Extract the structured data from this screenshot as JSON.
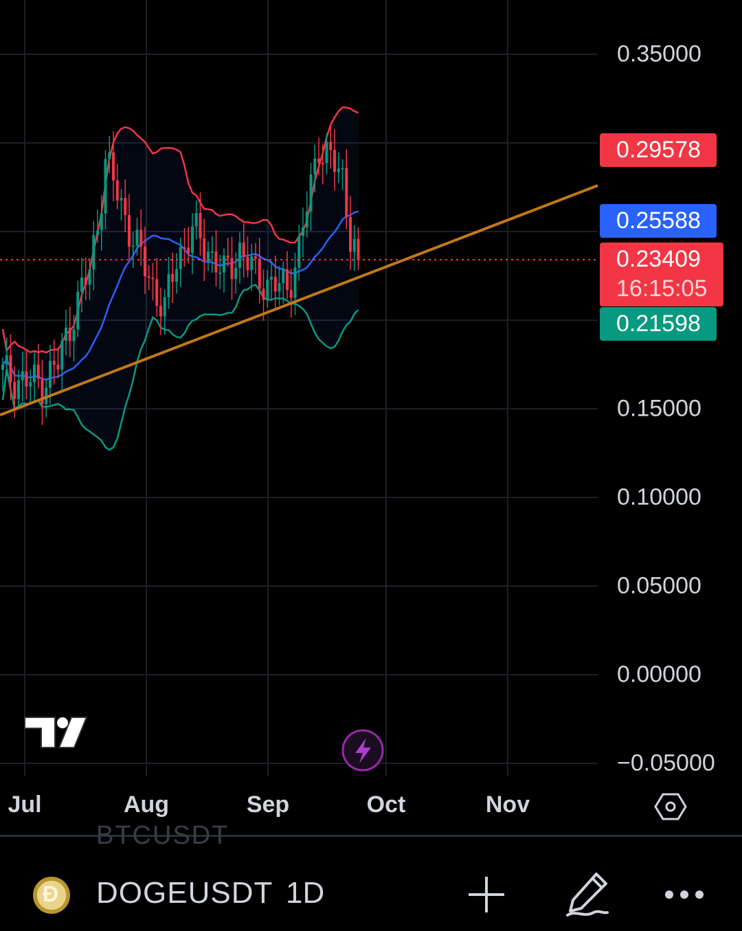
{
  "price_axis": {
    "labels": [
      "0.35000",
      "0.15000",
      "0.10000",
      "0.05000",
      "0.00000",
      "−0.05000"
    ]
  },
  "badges": {
    "upper": "0.29578",
    "middle": "0.25588",
    "last_price": "0.23409",
    "countdown": "16:15:05",
    "lower": "0.21598"
  },
  "time_axis": {
    "labels": [
      "Jul",
      "Aug",
      "Sep",
      "Oct",
      "Nov"
    ]
  },
  "toolbar": {
    "ghost_symbol": "BTCUSDT",
    "symbol": "DOGEUSDT",
    "interval": "1D"
  },
  "icons": {
    "logo": "tradingview-logo",
    "flash": "lightning-icon",
    "settings": "hexagon-settings-icon",
    "add": "plus-icon",
    "draw": "pencil-icon",
    "more": "more-dots-icon",
    "coin": "dogecoin-icon"
  },
  "colors": {
    "up": "#089981",
    "down": "#f23645",
    "upper_band": "#f23645",
    "basis": "#2962ff",
    "lower_band": "#089981",
    "trendline": "#c27916",
    "accent": "#9c27b0"
  },
  "chart_data": {
    "type": "candlestick",
    "symbol": "DOGEUSDT",
    "interval": "1D",
    "y_range": [
      -0.05,
      0.35
    ],
    "x_ticks": [
      "Jul",
      "Aug",
      "Sep",
      "Oct",
      "Nov"
    ],
    "last_price": 0.23409,
    "indicators": {
      "bollinger_upper": 0.29578,
      "bollinger_basis": 0.25588,
      "bollinger_lower": 0.21598
    },
    "approx_path": {
      "close_by_period": [
        {
          "period": "late Jun",
          "value": 0.165
        },
        {
          "period": "early Jul",
          "value": 0.17
        },
        {
          "period": "mid Jul",
          "value": 0.24
        },
        {
          "period": "late Jul",
          "value": 0.29
        },
        {
          "period": "early Aug",
          "value": 0.22
        },
        {
          "period": "mid Aug",
          "value": 0.245
        },
        {
          "period": "late Aug",
          "value": 0.225
        },
        {
          "period": "early Sep",
          "value": 0.225
        },
        {
          "period": "mid Sep",
          "value": 0.31
        },
        {
          "period": "late Sep",
          "value": 0.234
        }
      ]
    }
  }
}
